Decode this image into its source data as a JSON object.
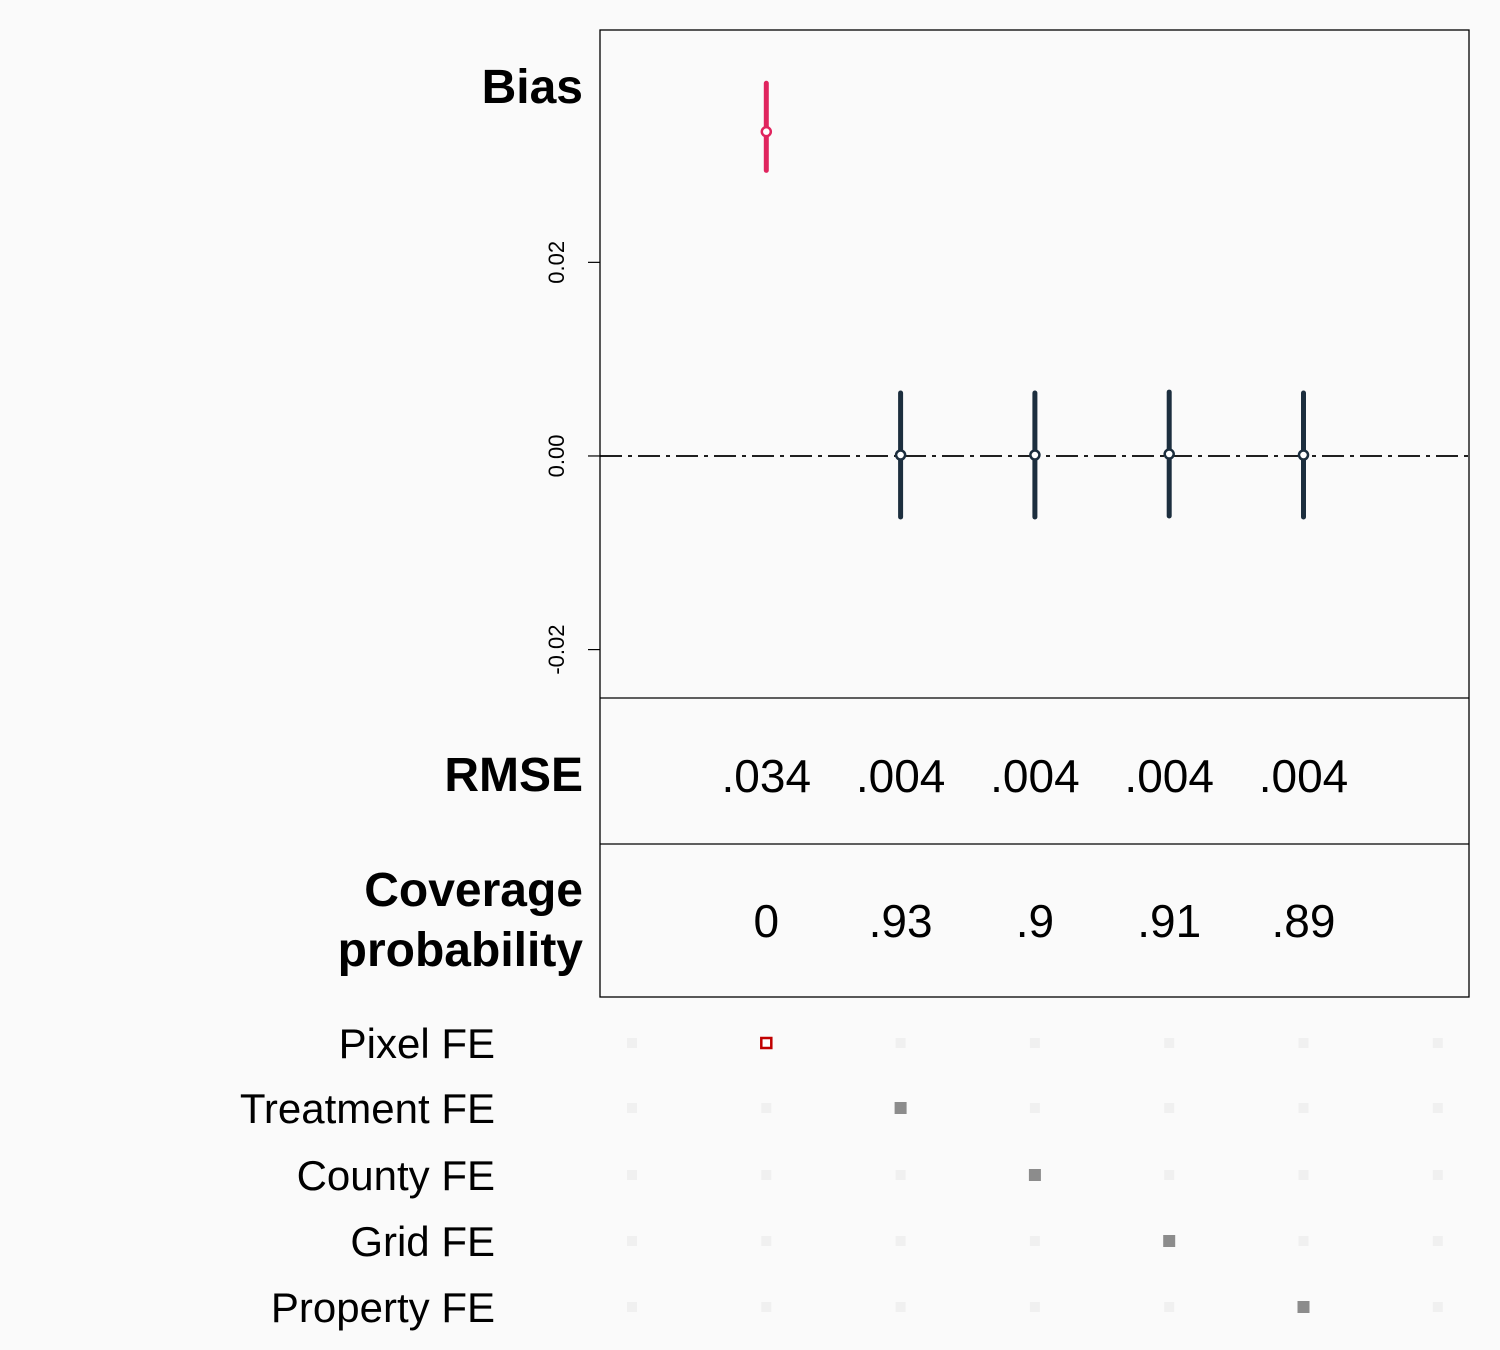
{
  "chart_data": {
    "type": "scatter",
    "panels": {
      "bias": {
        "title": "Bias",
        "y_ticks": [
          -0.02,
          0.0,
          0.02
        ],
        "y_tick_labels": [
          "-0.02",
          "0.00",
          "0.02"
        ],
        "ylim": [
          -0.025,
          0.044
        ],
        "reference_line": 0.0,
        "series": [
          {
            "x": [
              1,
              2,
              3,
              4,
              5
            ],
            "estimate": [
              0.0335,
              0.0001,
              0.0001,
              0.0002,
              0.0001
            ],
            "lower": [
              0.0295,
              -0.0063,
              -0.0063,
              -0.0062,
              -0.0063
            ],
            "upper": [
              0.0385,
              0.0065,
              0.0065,
              0.0066,
              0.0065
            ],
            "colors": [
              "#e0245e",
              "#1c2e3e",
              "#1c2e3e",
              "#1c2e3e",
              "#1c2e3e"
            ]
          }
        ]
      },
      "rmse": {
        "title": "RMSE",
        "values": [
          ".034",
          ".004",
          ".004",
          ".004",
          ".004"
        ]
      },
      "coverage": {
        "title_line1": "Coverage",
        "title_line2": "probability",
        "values": [
          "0",
          ".93",
          ".9",
          ".91",
          ".89"
        ]
      }
    },
    "spec_matrix": {
      "rows": [
        "Pixel FE",
        "Treatment FE",
        "County FE",
        "Grid FE",
        "Property FE"
      ],
      "columns": 7,
      "active": [
        {
          "row": 0,
          "col": 1,
          "style": "highlight"
        },
        {
          "row": 1,
          "col": 2,
          "style": "filled"
        },
        {
          "row": 2,
          "col": 3,
          "style": "filled"
        },
        {
          "row": 3,
          "col": 4,
          "style": "filled"
        },
        {
          "row": 4,
          "col": 5,
          "style": "filled"
        }
      ],
      "colors": {
        "inactive": "#f0f0f0",
        "filled": "#8c8c8c",
        "highlight": "#c00000"
      }
    }
  }
}
